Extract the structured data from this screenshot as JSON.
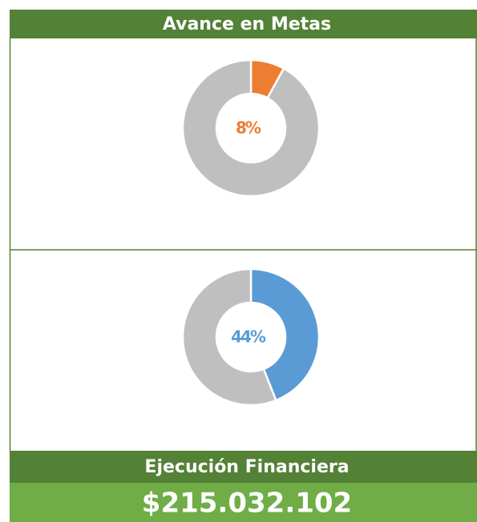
{
  "header": {
    "title": "Avance en Metas"
  },
  "chart_data": [
    {
      "type": "donut",
      "values": [
        8,
        92
      ],
      "value_labels": [
        "8%",
        null
      ],
      "colors": [
        "#ed7d31",
        "#bfbfbf"
      ]
    },
    {
      "type": "donut",
      "values": [
        44,
        56
      ],
      "value_labels": [
        "44%",
        null
      ],
      "colors": [
        "#5b9bd5",
        "#bfbfbf"
      ]
    }
  ],
  "footer": {
    "title": "Ejecución Financiera",
    "amount": "$215.032.102"
  }
}
